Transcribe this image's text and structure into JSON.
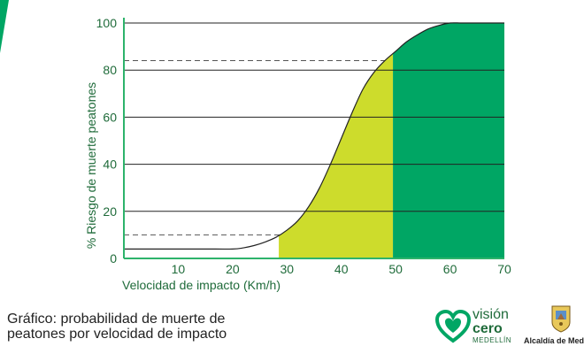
{
  "chart_data": {
    "type": "area",
    "ylabel": "% Riesgo de muerte peatones",
    "xlabel": "Velocidad de impacto (Km/h)",
    "xlim": [
      0,
      70
    ],
    "ylim": [
      0,
      100
    ],
    "x_ticks": [
      "10",
      "20",
      "30",
      "40",
      "50",
      "60",
      "70"
    ],
    "y_ticks": [
      "0",
      "20",
      "40",
      "60",
      "80",
      "100"
    ],
    "grid": true,
    "x": [
      0,
      5,
      10,
      15,
      20,
      22,
      24,
      26,
      28,
      30,
      32,
      34,
      36,
      38,
      40,
      42,
      44,
      46,
      48,
      50,
      52,
      54,
      56,
      58,
      60,
      62,
      64,
      66,
      68,
      70
    ],
    "values": [
      4,
      4,
      4,
      4,
      4,
      4.5,
      5.5,
      7,
      9,
      12,
      16,
      22,
      30,
      40,
      51,
      62,
      72,
      79,
      84,
      88,
      92,
      95,
      97.5,
      99,
      100,
      100,
      100,
      100,
      100,
      100
    ],
    "shaded_regions": [
      {
        "from": 28.5,
        "to": 49.5,
        "color": "#cddc2c"
      },
      {
        "from": 49.5,
        "to": 70,
        "color": "#00a664"
      }
    ],
    "reference_lines": [
      10,
      84
    ],
    "colors": {
      "text": "#1f6b3a",
      "axis": "#2db36b",
      "curve": "#222222"
    }
  },
  "caption": {
    "line1": "Gráfico: probabilidad de muerte de",
    "line2": "peatones por velocidad de impacto"
  },
  "logos": {
    "vision_word1": "visión",
    "vision_word2": "cero",
    "vision_word3": "MEDELLÍN",
    "alcaldia": "Alcaldía de Mede"
  }
}
